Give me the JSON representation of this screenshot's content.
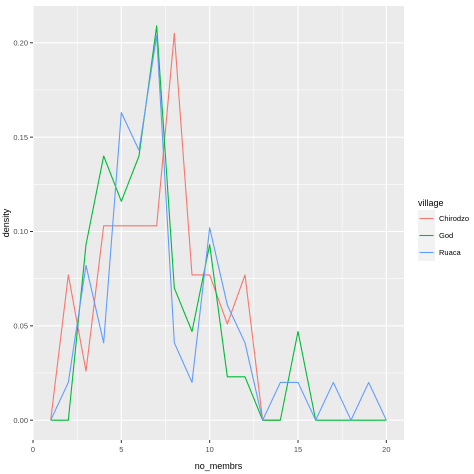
{
  "chart_data": {
    "type": "line",
    "xlabel": "no_membrs",
    "ylabel": "density",
    "xlim": [
      0,
      21
    ],
    "ylim": [
      -0.0105,
      0.2195
    ],
    "x_ticks": [
      0,
      5,
      10,
      15,
      20
    ],
    "x_tick_labels": [
      "0",
      "5",
      "10",
      "15",
      "20"
    ],
    "y_ticks": [
      0,
      0.05,
      0.1,
      0.15,
      0.2
    ],
    "y_tick_labels": [
      "0.00",
      "0.05",
      "0.10",
      "0.15",
      "0.20"
    ],
    "grid": true,
    "legend": {
      "title": "village",
      "position": "right"
    },
    "series": [
      {
        "name": "Chirodzo",
        "color": "#F8766D",
        "x": [
          1,
          2,
          3,
          4,
          5,
          6,
          7,
          8,
          9,
          10,
          11,
          12,
          13,
          14
        ],
        "y": [
          0.0,
          0.077,
          0.026,
          0.103,
          0.103,
          0.103,
          0.103,
          0.205,
          0.077,
          0.077,
          0.051,
          0.077,
          0.0,
          0.0
        ]
      },
      {
        "name": "God",
        "color": "#00BA38",
        "x": [
          1,
          2,
          3,
          4,
          5,
          6,
          7,
          8,
          9,
          10,
          11,
          12,
          13,
          14,
          15,
          16,
          17,
          18,
          19,
          20
        ],
        "y": [
          0.0,
          0.0,
          0.093,
          0.14,
          0.116,
          0.14,
          0.209,
          0.07,
          0.047,
          0.093,
          0.023,
          0.023,
          0.0,
          0.0,
          0.047,
          0.0,
          0.0,
          0.0,
          0.0,
          0.0
        ]
      },
      {
        "name": "Ruaca",
        "color": "#619CFF",
        "x": [
          1,
          2,
          3,
          4,
          5,
          6,
          7,
          8,
          9,
          10,
          11,
          12,
          13,
          14,
          15,
          16,
          17,
          18,
          19,
          20
        ],
        "y": [
          0.0,
          0.02,
          0.082,
          0.041,
          0.163,
          0.143,
          0.204,
          0.041,
          0.02,
          0.102,
          0.061,
          0.041,
          0.0,
          0.02,
          0.02,
          0.0,
          0.02,
          0.0,
          0.02,
          0.0
        ]
      }
    ]
  }
}
